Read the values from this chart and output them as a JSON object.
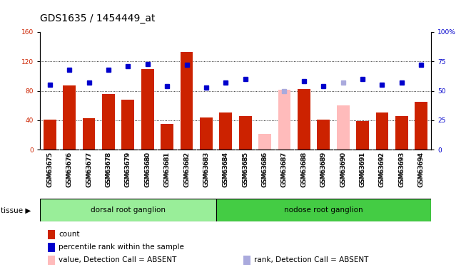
{
  "title": "GDS1635 / 1454449_at",
  "samples": [
    "GSM63675",
    "GSM63676",
    "GSM63677",
    "GSM63678",
    "GSM63679",
    "GSM63680",
    "GSM63681",
    "GSM63682",
    "GSM63683",
    "GSM63684",
    "GSM63685",
    "GSM63686",
    "GSM63687",
    "GSM63688",
    "GSM63689",
    "GSM63690",
    "GSM63691",
    "GSM63692",
    "GSM63693",
    "GSM63694"
  ],
  "bar_values": [
    41,
    87,
    43,
    76,
    68,
    110,
    35,
    133,
    44,
    50,
    46,
    null,
    null,
    82,
    41,
    null,
    39,
    50,
    46,
    65
  ],
  "bar_absent": [
    null,
    null,
    null,
    null,
    null,
    null,
    null,
    null,
    null,
    null,
    null,
    21,
    81,
    null,
    null,
    60,
    null,
    null,
    null,
    null
  ],
  "rank_values": [
    55,
    68,
    57,
    68,
    71,
    73,
    54,
    72,
    53,
    57,
    60,
    null,
    null,
    58,
    54,
    null,
    60,
    55,
    57,
    72
  ],
  "rank_absent": [
    null,
    null,
    null,
    null,
    null,
    null,
    null,
    null,
    null,
    null,
    null,
    null,
    50,
    null,
    null,
    57,
    null,
    null,
    null,
    null
  ],
  "dorsal_count": 9,
  "nodose_count": 11,
  "ylim_left": [
    0,
    160
  ],
  "ylim_right": [
    0,
    100
  ],
  "yticks_left": [
    0,
    40,
    80,
    120,
    160
  ],
  "yticks_right": [
    0,
    25,
    50,
    75,
    100
  ],
  "bar_color_present": "#cc2200",
  "bar_color_absent": "#ffbbbb",
  "dot_color_present": "#0000cc",
  "dot_color_absent": "#aaaadd",
  "dorsal_color": "#99ee99",
  "nodose_color": "#44cc44",
  "xticklabel_bg": "#cccccc",
  "grid_color": "black",
  "title_fontsize": 10,
  "tick_fontsize": 6.5
}
